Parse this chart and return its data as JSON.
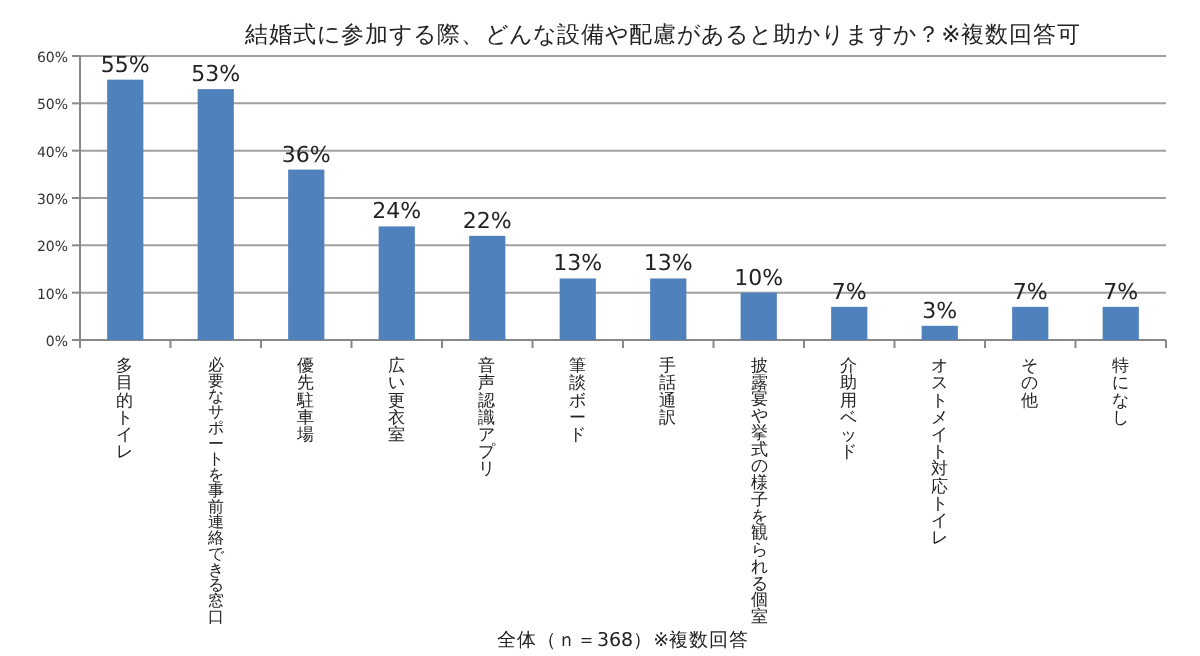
{
  "chart_data": {
    "type": "bar",
    "title": "結婚式に参加する際、どんな設備や配慮があると助かりますか？※複数回答可",
    "categories": [
      "多目的トイレ",
      "必要なサポートを事前連絡できる窓口",
      "優先駐車場",
      "広い更衣室",
      "音声認識アプリ",
      "筆談ボード",
      "手話通訳",
      "披露宴や挙式の様子を観られる個室",
      "介助用ベッド",
      "オストメイト対応トイレ",
      "その他",
      "特になし"
    ],
    "values": [
      55,
      53,
      36,
      24,
      22,
      13,
      13,
      10,
      7,
      3,
      7,
      7
    ],
    "value_labels": [
      "55%",
      "53%",
      "36%",
      "24%",
      "22%",
      "13%",
      "13%",
      "10%",
      "7%",
      "3%",
      "7%",
      "7%"
    ],
    "color": "#4f81bd",
    "ylim": [
      0,
      60
    ],
    "yticks": [
      {
        "value": 0,
        "label": "0%"
      },
      {
        "value": 10,
        "label": "10%"
      },
      {
        "value": 20,
        "label": "20%"
      },
      {
        "value": 30,
        "label": "30%"
      },
      {
        "value": 40,
        "label": "40%"
      },
      {
        "value": 50,
        "label": "50%"
      },
      {
        "value": 60,
        "label": "60%"
      }
    ],
    "grid": "y",
    "annotations": [
      "全体（ｎ＝368）※複数回答"
    ]
  }
}
